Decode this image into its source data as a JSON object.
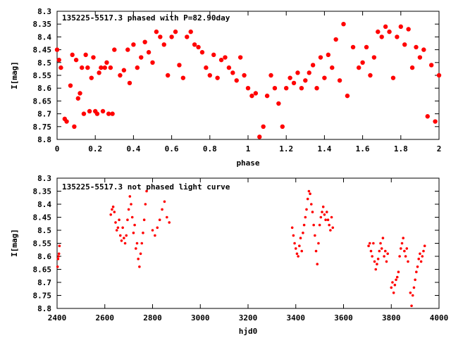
{
  "chart_data": [
    {
      "type": "scatter",
      "title": "135225-5517.3 phased with P=82.90day",
      "xlabel": "phase",
      "ylabel": "I[mag]",
      "xlim": [
        0,
        2
      ],
      "ylim": [
        8.3,
        8.8
      ],
      "y_inverted": true,
      "xticks": [
        "0",
        "0.2",
        "0.4",
        "0.6",
        "0.8",
        "1",
        "1.2",
        "1.4",
        "1.6",
        "1.8",
        "2"
      ],
      "xtick_values": [
        0,
        0.2,
        0.4,
        0.6,
        0.8,
        1.0,
        1.2,
        1.4,
        1.6,
        1.8,
        2.0
      ],
      "yticks": [
        "8.3",
        "8.35",
        "8.4",
        "8.45",
        "8.5",
        "8.55",
        "8.6",
        "8.65",
        "8.7",
        "8.75",
        "8.8"
      ],
      "ytick_values": [
        8.3,
        8.35,
        8.4,
        8.45,
        8.5,
        8.55,
        8.6,
        8.65,
        8.7,
        8.75,
        8.8
      ],
      "grid": false,
      "marker_color": "#ff0000",
      "marker": "filled-circle-large",
      "series": [
        {
          "x": [
            0.0,
            0.01,
            0.02,
            0.04,
            0.05,
            0.07,
            0.08,
            0.09,
            0.1,
            0.11,
            0.12,
            0.13,
            0.14,
            0.15,
            0.16,
            0.17,
            0.18,
            0.19,
            0.2,
            0.21,
            0.22,
            0.23,
            0.24,
            0.25,
            0.26,
            0.27,
            0.28,
            0.29,
            0.3,
            0.33,
            0.35,
            0.37,
            0.38,
            0.4,
            0.42,
            0.44,
            0.46,
            0.48,
            0.5,
            0.52,
            0.54,
            0.56,
            0.58,
            0.6,
            0.62,
            0.64,
            0.66,
            0.68,
            0.7,
            0.72,
            0.74,
            0.76,
            0.78,
            0.8,
            0.82,
            0.84,
            0.86,
            0.88,
            0.9,
            0.92,
            0.94,
            0.96,
            0.98,
            1.0,
            1.02,
            1.04,
            1.06,
            1.08,
            1.1,
            1.12,
            1.14,
            1.16,
            1.18,
            1.2,
            1.22,
            1.24,
            1.26,
            1.28,
            1.3,
            1.32,
            1.34,
            1.36,
            1.38,
            1.4,
            1.42,
            1.44,
            1.46,
            1.48,
            1.5,
            1.52,
            1.55,
            1.58,
            1.6,
            1.62,
            1.64,
            1.66,
            1.68,
            1.7,
            1.72,
            1.74,
            1.76,
            1.78,
            1.8,
            1.82,
            1.84,
            1.86,
            1.88,
            1.9,
            1.92,
            1.94,
            1.96,
            1.98,
            2.0
          ],
          "y": [
            8.45,
            8.49,
            8.52,
            8.72,
            8.73,
            8.59,
            8.47,
            8.75,
            8.49,
            8.64,
            8.62,
            8.52,
            8.7,
            8.47,
            8.52,
            8.69,
            8.56,
            8.48,
            8.69,
            8.7,
            8.54,
            8.52,
            8.69,
            8.52,
            8.5,
            8.7,
            8.52,
            8.7,
            8.45,
            8.55,
            8.53,
            8.45,
            8.58,
            8.43,
            8.52,
            8.48,
            8.42,
            8.46,
            8.5,
            8.38,
            8.4,
            8.43,
            8.55,
            8.4,
            8.38,
            8.51,
            8.56,
            8.4,
            8.38,
            8.43,
            8.44,
            8.46,
            8.52,
            8.55,
            8.47,
            8.56,
            8.49,
            8.48,
            8.52,
            8.54,
            8.57,
            8.48,
            8.55,
            8.6,
            8.63,
            8.62,
            8.79,
            8.75,
            8.63,
            8.55,
            8.6,
            8.66,
            8.75,
            8.6,
            8.56,
            8.58,
            8.54,
            8.6,
            8.57,
            8.54,
            8.51,
            8.6,
            8.48,
            8.56,
            8.47,
            8.52,
            8.41,
            8.57,
            8.35,
            8.63,
            8.44,
            8.52,
            8.5,
            8.44,
            8.55,
            8.48,
            8.38,
            8.4,
            8.36,
            8.38,
            8.56,
            8.4,
            8.36,
            8.43,
            8.37,
            8.52,
            8.44,
            8.48,
            8.45,
            8.71,
            8.51,
            8.73,
            8.55
          ]
        }
      ]
    },
    {
      "type": "scatter",
      "title": "135225-5517.3 not phased light curve",
      "xlabel": "hjd0",
      "ylabel": "I[mag]",
      "xlim": [
        2400,
        4000
      ],
      "ylim": [
        8.3,
        8.8
      ],
      "y_inverted": true,
      "xticks": [
        "2400",
        "2600",
        "2800",
        "3000",
        "3200",
        "3400",
        "3600",
        "3800",
        "4000"
      ],
      "xtick_values": [
        2400,
        2600,
        2800,
        3000,
        3200,
        3400,
        3600,
        3800,
        4000
      ],
      "yticks": [
        "8.3",
        "8.35",
        "8.4",
        "8.45",
        "8.5",
        "8.55",
        "8.6",
        "8.65",
        "8.7",
        "8.75",
        "8.8"
      ],
      "ytick_values": [
        8.3,
        8.35,
        8.4,
        8.45,
        8.5,
        8.55,
        8.6,
        8.65,
        8.7,
        8.75,
        8.8
      ],
      "grid": false,
      "marker_color": "#ff0000",
      "marker": "filled-circle-small",
      "series": [
        {
          "x": [
            2402,
            2404,
            2406,
            2408,
            2410,
            2625,
            2630,
            2635,
            2640,
            2645,
            2650,
            2655,
            2660,
            2665,
            2670,
            2675,
            2680,
            2685,
            2690,
            2695,
            2700,
            2705,
            2710,
            2715,
            2720,
            2725,
            2730,
            2735,
            2740,
            2745,
            2750,
            2755,
            2760,
            2765,
            2770,
            2775,
            2800,
            2810,
            2820,
            2830,
            2840,
            2850,
            2860,
            2870,
            3385,
            3390,
            3395,
            3400,
            3405,
            3410,
            3415,
            3420,
            3425,
            3430,
            3435,
            3440,
            3445,
            3450,
            3455,
            3460,
            3465,
            3470,
            3475,
            3480,
            3485,
            3490,
            3495,
            3500,
            3505,
            3510,
            3515,
            3520,
            3525,
            3530,
            3535,
            3540,
            3545,
            3550,
            3555,
            3705,
            3710,
            3715,
            3720,
            3725,
            3730,
            3735,
            3740,
            3745,
            3750,
            3755,
            3760,
            3765,
            3770,
            3775,
            3780,
            3785,
            3800,
            3805,
            3810,
            3815,
            3820,
            3825,
            3830,
            3835,
            3840,
            3845,
            3850,
            3855,
            3860,
            3865,
            3870,
            3880,
            3885,
            3890,
            3895,
            3900,
            3905,
            3910,
            3915,
            3920,
            3925,
            3930,
            3935,
            3940
          ],
          "y": [
            8.64,
            8.61,
            8.6,
            8.59,
            8.56,
            8.44,
            8.42,
            8.41,
            8.43,
            8.47,
            8.5,
            8.49,
            8.46,
            8.52,
            8.54,
            8.49,
            8.53,
            8.55,
            8.52,
            8.46,
            8.42,
            8.37,
            8.4,
            8.45,
            8.51,
            8.48,
            8.57,
            8.55,
            8.61,
            8.64,
            8.59,
            8.55,
            8.51,
            8.46,
            8.4,
            8.35,
            8.5,
            8.52,
            8.49,
            8.46,
            8.42,
            8.39,
            8.45,
            8.47,
            8.49,
            8.52,
            8.55,
            8.57,
            8.59,
            8.6,
            8.56,
            8.53,
            8.58,
            8.51,
            8.48,
            8.45,
            8.42,
            8.38,
            8.35,
            8.36,
            8.4,
            8.43,
            8.48,
            8.52,
            8.58,
            8.63,
            8.55,
            8.48,
            8.45,
            8.43,
            8.41,
            8.44,
            8.46,
            8.43,
            8.46,
            8.48,
            8.5,
            8.45,
            8.49,
            8.56,
            8.55,
            8.58,
            8.6,
            8.55,
            8.62,
            8.65,
            8.63,
            8.61,
            8.58,
            8.55,
            8.57,
            8.53,
            8.6,
            8.58,
            8.62,
            8.59,
            8.72,
            8.7,
            8.74,
            8.71,
            8.69,
            8.68,
            8.66,
            8.6,
            8.57,
            8.55,
            8.53,
            8.58,
            8.6,
            8.57,
            8.62,
            8.74,
            8.79,
            8.75,
            8.72,
            8.69,
            8.66,
            8.64,
            8.61,
            8.59,
            8.62,
            8.6,
            8.58,
            8.56
          ]
        }
      ]
    }
  ]
}
